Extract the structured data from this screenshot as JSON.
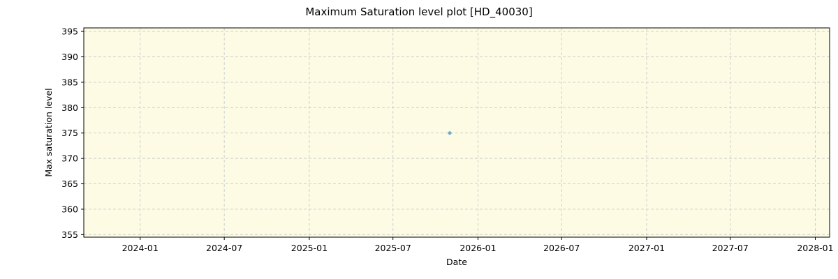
{
  "chart_data": {
    "type": "scatter",
    "title": "Maximum Saturation level plot [HD_40030]",
    "x_label": "Date",
    "y_label": "Max saturation level",
    "series": [
      {
        "name": "Max saturation level",
        "color": "#5b9bc0",
        "x": [
          "2025-11"
        ],
        "values": [
          375
        ]
      }
    ],
    "xlim": [
      "2023-09",
      "2028-02"
    ],
    "xticks": [
      "2024-01",
      "2024-07",
      "2025-01",
      "2025-07",
      "2026-01",
      "2026-07",
      "2027-01",
      "2027-07",
      "2028-01"
    ],
    "ylim": [
      354.5,
      395.7
    ],
    "yticks": [
      355,
      360,
      365,
      370,
      375,
      380,
      385,
      390,
      395
    ],
    "grid": true,
    "background": "#fdfbe3"
  }
}
